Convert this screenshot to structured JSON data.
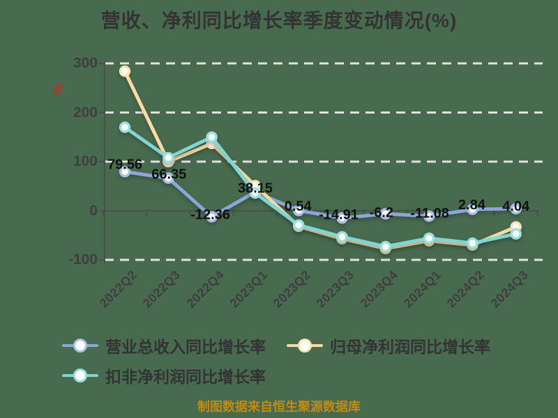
{
  "title": "营收、净利同比增长率季度变动情况(%)",
  "y_axis_unit": "%",
  "footer": "制图数据来自恒生聚源数据库",
  "colors": {
    "background": "#486B50",
    "title": "#333333",
    "axis": "#4D4D4D",
    "grid": "#E2E2E2",
    "tick_label": "#3F3F3F",
    "data_label": "#111111",
    "unit_label": "#D42424",
    "footer": "#C18A12"
  },
  "chart_data": {
    "type": "line",
    "title": "营收、净利同比增长率季度变动情况(%)",
    "xlabel": "",
    "ylabel": "%",
    "ylim": [
      -100,
      300
    ],
    "yticks": [
      300,
      200,
      100,
      0,
      -100
    ],
    "grid": "horizontal dashed",
    "legend_position": "bottom-left",
    "categories": [
      "2022Q2",
      "2022Q3",
      "2022Q4",
      "2023Q1",
      "2023Q2",
      "2023Q3",
      "2023Q4",
      "2024Q1",
      "2024Q2",
      "2024Q3"
    ],
    "series": [
      {
        "name": "营业总收入同比增长率",
        "color": "#8BA7D7",
        "ring": "#A6C1E4",
        "values": [
          79.56,
          66.35,
          -12.36,
          38.15,
          0.54,
          -14.91,
          -6.2,
          -11.08,
          2.84,
          4.04
        ],
        "labels": [
          "79.56",
          "66.35",
          "-12.36",
          "38.15",
          "0.54",
          "-14.91",
          "-6.2",
          "-11.08",
          "2.84",
          "4.04"
        ],
        "labeled": true
      },
      {
        "name": "归母净利润同比增长率",
        "color": "#F6DCA4",
        "ring": "#F8E3B4",
        "values": [
          284,
          100,
          137,
          51,
          -32,
          -57,
          -77,
          -61,
          -70,
          -33
        ],
        "labeled": false
      },
      {
        "name": "扣非净利润同比增长率",
        "color": "#7ED6D2",
        "ring": "#99E0DC",
        "values": [
          170,
          108,
          150,
          36,
          -29,
          -53,
          -73,
          -56,
          -66,
          -47
        ],
        "labeled": false
      }
    ],
    "footer": "制图数据来自恒生聚源数据库"
  }
}
